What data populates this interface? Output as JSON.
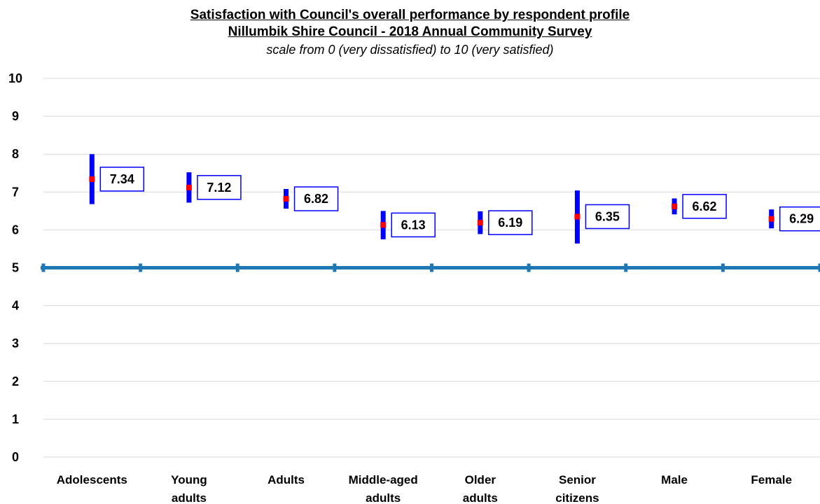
{
  "chart_data": {
    "type": "scatter",
    "title": "Satisfaction  with Council's overall performance by respondent profile",
    "subtitle": "Nillumbik Shire Council - 2018 Annual Community Survey",
    "note": "scale from 0 (very dissatisfied) to 10 (very satisfied)",
    "ylim": [
      0,
      10
    ],
    "yticks": [
      "0",
      "1",
      "2",
      "3",
      "4",
      "5",
      "6",
      "7",
      "8",
      "9",
      "10"
    ],
    "grid": true,
    "reference_line": 5,
    "categories": [
      [
        "Adolescents"
      ],
      [
        "Young",
        "adults"
      ],
      [
        "Adults"
      ],
      [
        "Middle-aged",
        "adults"
      ],
      [
        "Older",
        "adults"
      ],
      [
        "Senior",
        "citizens"
      ],
      [
        "Male"
      ],
      [
        "Female"
      ]
    ],
    "values": [
      7.34,
      7.12,
      6.82,
      6.13,
      6.19,
      6.35,
      6.62,
      6.29
    ],
    "labels": [
      "7.34",
      "7.12",
      "6.82",
      "6.13",
      "6.19",
      "6.35",
      "6.62",
      "6.29"
    ],
    "error_bars": [
      [
        6.68,
        8.0
      ],
      [
        6.72,
        7.52
      ],
      [
        6.56,
        7.08
      ],
      [
        5.75,
        6.5
      ],
      [
        5.89,
        6.49
      ],
      [
        5.64,
        7.04
      ],
      [
        6.41,
        6.83
      ],
      [
        6.04,
        6.54
      ]
    ],
    "colors": {
      "error_bar": "#0000ff",
      "point": "#ff0000",
      "reference_line": "#1f77b4",
      "grid": "#d9d9d9",
      "label_border": "#0000ff"
    }
  }
}
